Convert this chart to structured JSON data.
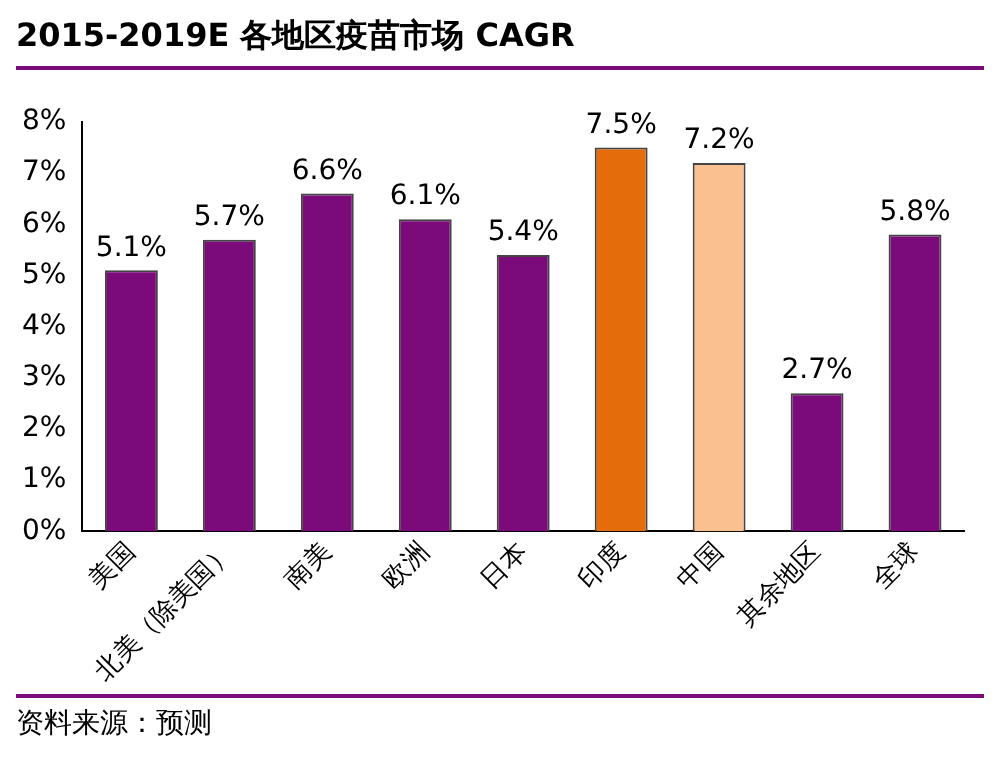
{
  "chart_data": {
    "type": "bar",
    "title": "2015-2019E 各地区疫苗市场 CAGR",
    "categories": [
      "美国",
      "北美（除美国）",
      "南美",
      "欧洲",
      "日本",
      "印度",
      "中国",
      "其余地区",
      "全球"
    ],
    "values": [
      5.1,
      5.7,
      6.6,
      6.1,
      5.4,
      7.5,
      7.2,
      2.7,
      5.8
    ],
    "colors": [
      "#7b0a7b",
      "#7b0a7b",
      "#7b0a7b",
      "#7b0a7b",
      "#7b0a7b",
      "#e46c0a",
      "#fac090",
      "#7b0a7b",
      "#7b0a7b"
    ],
    "value_labels": [
      "5.1%",
      "5.7%",
      "6.6%",
      "6.1%",
      "5.4%",
      "7.5%",
      "7.2%",
      "2.7%",
      "5.8%"
    ],
    "ylim": [
      0,
      8
    ],
    "yticks": [
      {
        "value": 0,
        "label": "0%"
      },
      {
        "value": 1,
        "label": "1%"
      },
      {
        "value": 2,
        "label": "2%"
      },
      {
        "value": 3,
        "label": "3%"
      },
      {
        "value": 4,
        "label": "4%"
      },
      {
        "value": 5,
        "label": "5%"
      },
      {
        "value": 6,
        "label": "6%"
      },
      {
        "value": 7,
        "label": "7%"
      },
      {
        "value": 8,
        "label": "8%"
      }
    ],
    "grid": false,
    "legend": false,
    "annotations": [
      "资料来源：预测"
    ]
  }
}
